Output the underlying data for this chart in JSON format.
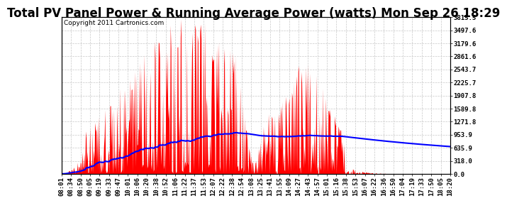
{
  "title": "Total PV Panel Power & Running Average Power (watts) Mon Sep 26 18:29",
  "copyright": "Copyright 2011 Cartronics.com",
  "background_color": "#ffffff",
  "plot_bg_color": "#ffffff",
  "bar_color": "#ff0000",
  "line_color": "#0000ff",
  "grid_color": "#c8c8c8",
  "ylabel_right": [
    "3815.5",
    "3497.6",
    "3179.6",
    "2861.6",
    "2543.7",
    "2225.7",
    "1907.8",
    "1589.8",
    "1271.8",
    "953.9",
    "635.9",
    "318.0",
    "0.0"
  ],
  "ymax": 3815.5,
  "ymin": 0.0,
  "x_labels": [
    "08:01",
    "08:34",
    "08:50",
    "09:05",
    "09:19",
    "09:33",
    "09:47",
    "10:01",
    "10:06",
    "10:20",
    "10:38",
    "10:52",
    "11:06",
    "11:22",
    "11:37",
    "11:53",
    "12:07",
    "12:22",
    "12:38",
    "12:54",
    "13:08",
    "13:25",
    "13:41",
    "13:55",
    "14:09",
    "14:27",
    "14:43",
    "14:57",
    "15:01",
    "15:16",
    "15:38",
    "15:53",
    "16:07",
    "16:22",
    "16:36",
    "16:50",
    "17:04",
    "17:19",
    "17:33",
    "17:50",
    "18:05",
    "18:20"
  ],
  "title_fontsize": 12,
  "copyright_fontsize": 6.5,
  "tick_fontsize": 6.5
}
